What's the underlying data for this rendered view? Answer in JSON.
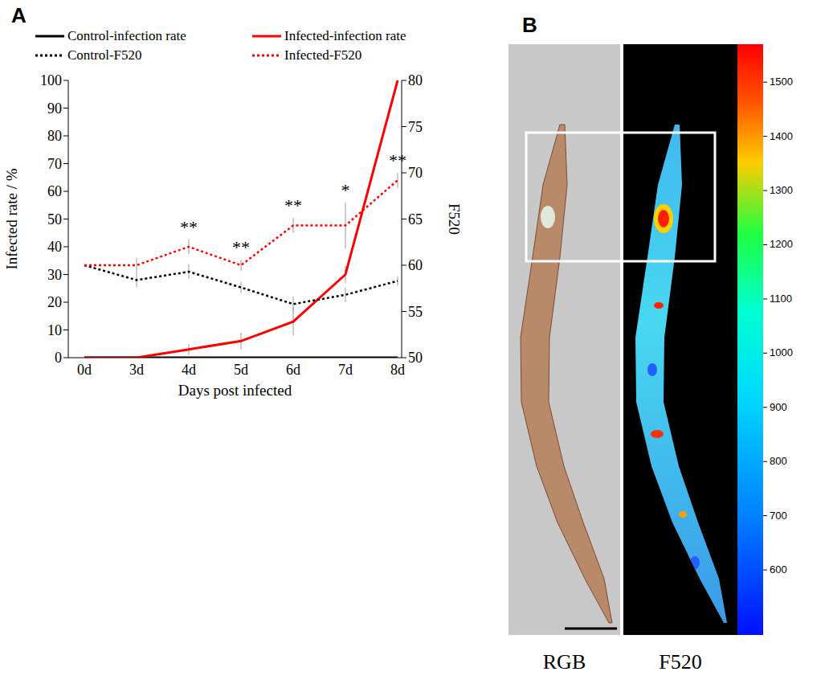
{
  "chart_data": [
    {
      "type": "line",
      "panel": "A",
      "x_label": "Days post infected",
      "y_label": "Infected rate / %",
      "y2_label": "F520",
      "categories": [
        "0d",
        "3d",
        "4d",
        "5d",
        "6d",
        "7d",
        "8d"
      ],
      "ylim": [
        0,
        100
      ],
      "yticks": [
        0,
        10,
        20,
        30,
        40,
        50,
        60,
        70,
        80,
        90,
        100
      ],
      "y2lim": [
        50,
        80
      ],
      "y2ticks": [
        50,
        55,
        60,
        65,
        70,
        75,
        80
      ],
      "legend": "top",
      "series": [
        {
          "name": "Control-infection rate",
          "color": "#000000",
          "line_style": "solid",
          "values": [
            0,
            0,
            0,
            0,
            0,
            0,
            0
          ]
        },
        {
          "name": "Infected-infection rate",
          "color": "#ff0000",
          "line_style": "solid",
          "values": [
            0,
            0,
            3,
            6,
            13,
            30,
            100
          ],
          "errors": [
            0,
            0,
            2,
            3,
            5,
            3,
            0
          ]
        },
        {
          "name": "Control-F520",
          "color": "#000000",
          "line_style": "dotted",
          "axis": "y2",
          "values": [
            60,
            58.4,
            59.3,
            57.6,
            55.8,
            56.8,
            58.3
          ],
          "errors": [
            0,
            0.8,
            0.8,
            0.6,
            0.8,
            0.8,
            0.5
          ]
        },
        {
          "name": "Infected-F520",
          "color": "#ff0000",
          "line_style": "dotted",
          "axis": "y2",
          "values": [
            60,
            60,
            62,
            60,
            64.3,
            64.3,
            69.2
          ],
          "errors": [
            0,
            0.8,
            0.8,
            0.6,
            0.8,
            2.5,
            0.8
          ],
          "annotations": [
            null,
            null,
            "**",
            "**",
            "**",
            "*",
            "**"
          ]
        }
      ]
    },
    {
      "type": "image",
      "panel": "B",
      "images": [
        "RGB",
        "F520"
      ],
      "colorbar": {
        "range": [
          480,
          1570
        ],
        "ticks": [
          600,
          700,
          800,
          900,
          1000,
          1100,
          1200,
          1300,
          1400,
          1500
        ]
      }
    }
  ]
}
